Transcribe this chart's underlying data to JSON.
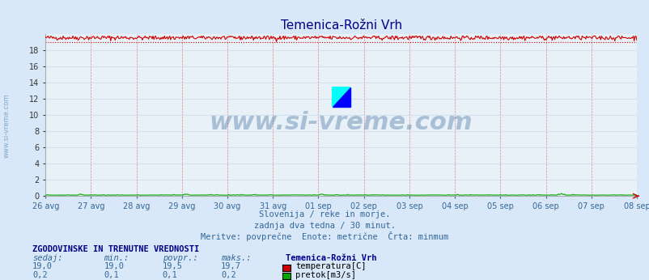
{
  "title": "Temenica-Rožni Vrh",
  "bg_color": "#d8e8f8",
  "plot_bg_color": "#e8f0f8",
  "grid_color_h": "#c8d8e8",
  "grid_color_v": "#e08080",
  "x_tick_labels": [
    "26 avg",
    "27 avg",
    "28 avg",
    "29 avg",
    "30 avg",
    "31 avg",
    "01 sep",
    "02 sep",
    "03 sep",
    "04 sep",
    "05 sep",
    "06 sep",
    "07 sep",
    "08 sep"
  ],
  "y_ticks": [
    0,
    2,
    4,
    6,
    8,
    10,
    12,
    14,
    16,
    18
  ],
  "y_min": 0,
  "y_max": 20,
  "temp_value": 19.5,
  "temp_min": 19.0,
  "temp_max": 19.7,
  "flow_value": 0.1,
  "flow_min": 0.1,
  "flow_max": 0.2,
  "temp_color": "#cc0000",
  "flow_color": "#00aa00",
  "minmum_line_color": "#cc0000",
  "subtitle1": "Slovenija / reke in morje.",
  "subtitle2": "zadnja dva tedna / 30 minut.",
  "subtitle3": "Meritve: povprečne  Enote: metrične  Črta: minmum",
  "footer_title": "ZGODOVINSKE IN TRENUTNE VREDNOSTI",
  "col_headers": [
    "sedaj:",
    "min.:",
    "povpr.:",
    "maks.:"
  ],
  "station_name": "Temenica-Rožni Vrh",
  "row1": [
    "19,0",
    "19,0",
    "19,5",
    "19,7"
  ],
  "row2": [
    "0,2",
    "0,1",
    "0,1",
    "0,2"
  ],
  "legend1": "temperatura[C]",
  "legend2": "pretok[m3/s]",
  "watermark": "www.si-vreme.com"
}
